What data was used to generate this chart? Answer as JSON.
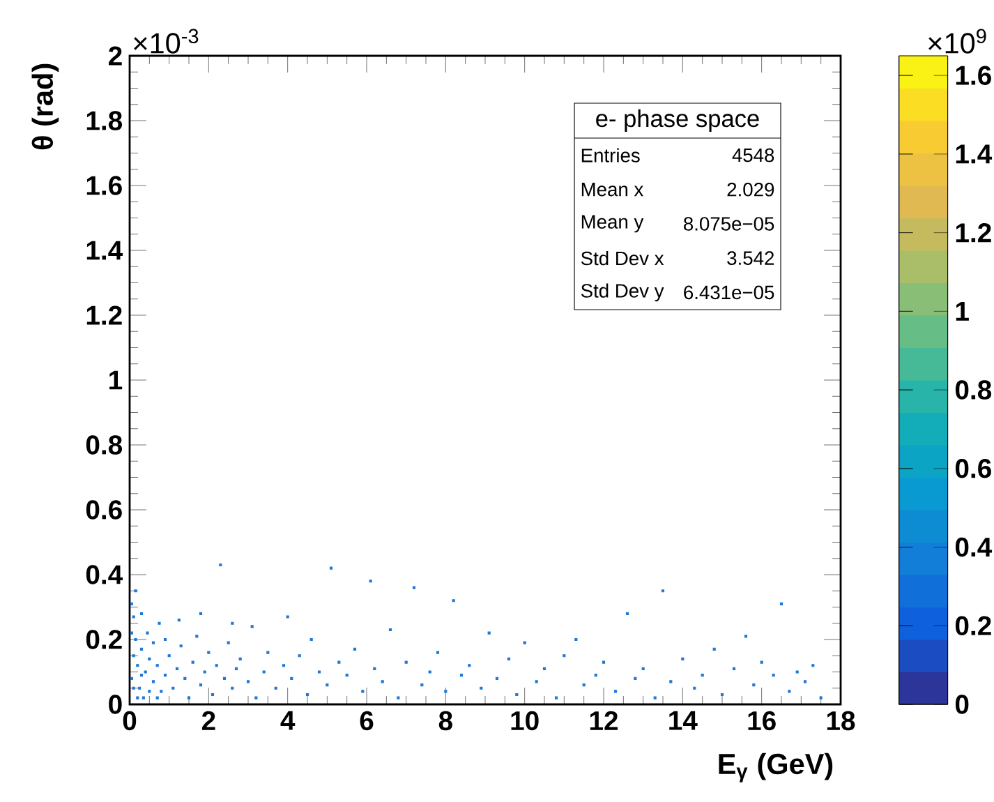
{
  "chart_data": {
    "type": "scatter",
    "xlabel": "E$_{γ}$ (GeV)",
    "ylabel": "θ (rad)",
    "x": [
      0.05,
      0.1,
      0.05,
      0.15,
      0.1,
      0.2,
      0.3,
      0.05,
      0.25,
      0.4,
      0.5,
      0.6,
      0.35,
      0.7,
      0.8,
      0.9,
      0.45,
      0.6,
      0.15,
      0.3,
      0.75,
      1.0,
      1.1,
      1.2,
      1.3,
      1.4,
      1.5,
      1.6,
      1.7,
      1.8,
      1.9,
      2.0,
      2.1,
      2.2,
      2.3,
      2.4,
      2.5,
      2.6,
      2.7,
      2.8,
      3.0,
      3.1,
      3.2,
      3.4,
      3.5,
      3.7,
      3.9,
      4.0,
      4.1,
      4.3,
      4.5,
      4.6,
      4.8,
      5.0,
      5.1,
      5.3,
      5.5,
      5.7,
      5.9,
      6.1,
      6.2,
      6.4,
      6.6,
      6.8,
      7.0,
      7.2,
      7.4,
      7.6,
      7.8,
      8.0,
      8.2,
      8.4,
      8.6,
      8.9,
      9.1,
      9.3,
      9.6,
      9.8,
      10.0,
      10.3,
      10.5,
      10.8,
      11.0,
      11.3,
      11.5,
      11.8,
      12.0,
      12.3,
      12.6,
      12.8,
      13.0,
      13.3,
      13.5,
      13.7,
      14.0,
      14.3,
      14.5,
      14.8,
      15.0,
      15.3,
      15.6,
      15.8,
      16.0,
      16.3,
      16.5,
      16.7,
      16.9,
      17.1,
      17.3,
      17.5,
      0.2,
      0.5,
      0.1,
      0.3,
      0.7,
      0.9,
      1.25,
      1.8,
      2.6
    ],
    "values": [
      0.31,
      0.27,
      0.22,
      0.2,
      0.15,
      0.12,
      0.17,
      0.08,
      0.05,
      0.1,
      0.14,
      0.07,
      0.02,
      0.12,
      0.04,
      0.09,
      0.22,
      0.19,
      0.35,
      0.28,
      0.25,
      0.15,
      0.05,
      0.11,
      0.18,
      0.08,
      0.02,
      0.13,
      0.21,
      0.06,
      0.1,
      0.16,
      0.03,
      0.12,
      0.43,
      0.08,
      0.19,
      0.05,
      0.11,
      0.14,
      0.07,
      0.24,
      0.02,
      0.1,
      0.16,
      0.05,
      0.12,
      0.27,
      0.08,
      0.15,
      0.03,
      0.2,
      0.1,
      0.06,
      0.42,
      0.13,
      0.09,
      0.17,
      0.04,
      0.38,
      0.11,
      0.07,
      0.23,
      0.02,
      0.13,
      0.36,
      0.06,
      0.1,
      0.16,
      0.04,
      0.32,
      0.09,
      0.12,
      0.05,
      0.22,
      0.08,
      0.14,
      0.03,
      0.19,
      0.07,
      0.11,
      0.02,
      0.15,
      0.2,
      0.06,
      0.09,
      0.13,
      0.04,
      0.28,
      0.08,
      0.11,
      0.02,
      0.35,
      0.07,
      0.14,
      0.05,
      0.09,
      0.17,
      0.03,
      0.11,
      0.21,
      0.06,
      0.13,
      0.09,
      0.31,
      0.04,
      0.1,
      0.07,
      0.12,
      0.02,
      0.02,
      0.04,
      0.05,
      0.09,
      0.02,
      0.2,
      0.26,
      0.28,
      0.25
    ],
    "color": "#1f78d6",
    "marker": "square",
    "xlim": [
      0,
      18
    ],
    "ylim": [
      0,
      2
    ],
    "xticks": [
      0,
      2,
      4,
      6,
      8,
      10,
      12,
      14,
      16,
      18
    ],
    "yticks": [
      0,
      0.2,
      0.4,
      0.6,
      0.8,
      1,
      1.2,
      1.4,
      1.6,
      1.8,
      2
    ],
    "clim": [
      0,
      1.65
    ],
    "cticks": [
      0,
      0.2,
      0.4,
      0.6,
      0.8,
      1,
      1.2,
      1.4,
      1.6
    ],
    "annotations": [
      "×10$^{-3}$",
      "×10$^{9}$",
      "e- phase space",
      "Entries",
      "4548",
      "Mean x",
      "2.029",
      "Mean y",
      "8.075e−05",
      "Std Dev x",
      "3.542",
      "Std Dev y",
      "6.431e−05"
    ]
  }
}
